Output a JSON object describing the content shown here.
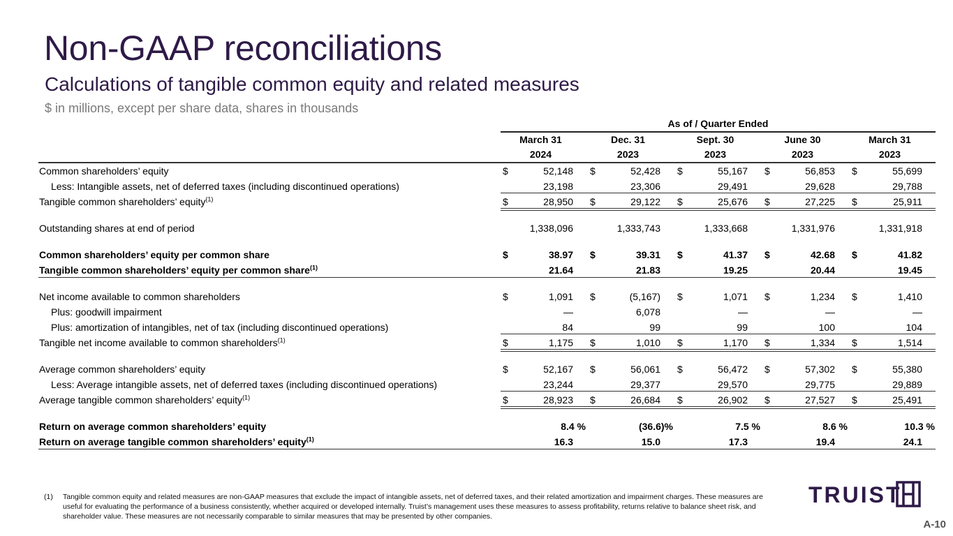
{
  "header": {
    "title": "Non-GAAP reconciliations",
    "subtitle": "Calculations of tangible common equity and related measures",
    "units": "$ in millions, except per share data, shares in thousands"
  },
  "table": {
    "group_header": "As of / Quarter Ended",
    "columns": [
      {
        "month": "March 31",
        "year": "2024"
      },
      {
        "month": "Dec. 31",
        "year": "2023"
      },
      {
        "month": "Sept. 30",
        "year": "2023"
      },
      {
        "month": "June 30",
        "year": "2023"
      },
      {
        "month": "March 31",
        "year": "2023"
      }
    ],
    "rows": [
      {
        "label": "Common shareholders’ equity",
        "currency": true,
        "values": [
          "52,148",
          "52,428",
          "55,167",
          "56,853",
          "55,699"
        ]
      },
      {
        "label": "Less: Intangible assets, net of deferred taxes (including discontinued operations)",
        "indent": true,
        "values": [
          "23,198",
          "23,306",
          "29,491",
          "29,628",
          "29,788"
        ],
        "rule": "single"
      },
      {
        "label": "Tangible common shareholders’ equity",
        "sup": "(1)",
        "currency": true,
        "values": [
          "28,950",
          "29,122",
          "25,676",
          "27,225",
          "25,911"
        ],
        "rule": "double"
      },
      {
        "label": "Outstanding shares at end of period",
        "gap": true,
        "values": [
          "1,338,096",
          "1,333,743",
          "1,333,668",
          "1,331,976",
          "1,331,918"
        ]
      },
      {
        "label": "Common shareholders’ equity per common share",
        "gap": true,
        "bold": true,
        "currency": true,
        "values": [
          "38.97",
          "39.31",
          "41.37",
          "42.68",
          "41.82"
        ]
      },
      {
        "label": "Tangible common shareholders’ equity per common share",
        "sup": "(1)",
        "bold": true,
        "values": [
          "21.64",
          "21.83",
          "19.25",
          "20.44",
          "19.45"
        ],
        "rule": "full"
      },
      {
        "label": "Net income available to common shareholders",
        "gap": true,
        "currency": true,
        "values": [
          "1,091",
          "(5,167)",
          "1,071",
          "1,234",
          "1,410"
        ]
      },
      {
        "label": "Plus: goodwill impairment",
        "indent": true,
        "values": [
          "—",
          "6,078",
          "—",
          "—",
          "—"
        ]
      },
      {
        "label": "Plus: amortization of intangibles, net of tax (including discontinued operations)",
        "indent": true,
        "values": [
          "84",
          "99",
          "99",
          "100",
          "104"
        ],
        "rule": "single"
      },
      {
        "label": "Tangible net income available to common shareholders",
        "sup": "(1)",
        "currency": true,
        "values": [
          "1,175",
          "1,010",
          "1,170",
          "1,334",
          "1,514"
        ],
        "rule": "double"
      },
      {
        "label": "Average common shareholders’ equity",
        "gap": true,
        "currency": true,
        "values": [
          "52,167",
          "56,061",
          "56,472",
          "57,302",
          "55,380"
        ]
      },
      {
        "label": "Less: Average intangible assets, net of deferred taxes (including discontinued operations)",
        "indent": true,
        "values": [
          "23,244",
          "29,377",
          "29,570",
          "29,775",
          "29,889"
        ],
        "rule": "single"
      },
      {
        "label": "Average tangible common shareholders’ equity",
        "sup": "(1)",
        "currency": true,
        "values": [
          "28,923",
          "26,684",
          "26,902",
          "27,527",
          "25,491"
        ],
        "rule": "double"
      },
      {
        "label": "Return on average common shareholders’ equity",
        "gap": true,
        "bold": true,
        "pct": true,
        "values": [
          "8.4 %",
          "(36.6)%",
          "7.5 %",
          "8.6 %",
          "10.3 %"
        ]
      },
      {
        "label": "Return on average tangible common shareholders’ equity",
        "sup": "(1)",
        "bold": true,
        "values": [
          "16.3",
          "15.0",
          "17.3",
          "19.4",
          "24.1"
        ],
        "rule": "full"
      }
    ],
    "currency_symbol": "$"
  },
  "footnote": {
    "number": "(1)",
    "text": "Tangible common equity and related measures are non-GAAP measures that exclude the impact of intangible assets, net of deferred taxes, and their related amortization and impairment charges. These measures are useful for evaluating the performance of a business consistently, whether acquired or developed internally. Truist’s management uses these measures to assess profitability, returns relative to balance sheet risk, and shareholder value. These measures are not necessarily comparable to similar measures that may be presented by other companies."
  },
  "brand": {
    "name": "TRUIST",
    "color": "#2e1a47"
  },
  "page_number": "A-10"
}
